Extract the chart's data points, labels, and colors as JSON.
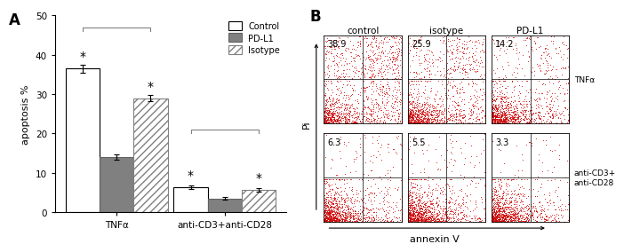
{
  "panel_A": {
    "ylabel": "apoptosis %",
    "ylim": [
      0,
      50
    ],
    "yticks": [
      0,
      10,
      20,
      30,
      40,
      50
    ],
    "groups": [
      "TNFα",
      "anti-CD3+anti-CD28"
    ],
    "bars": {
      "Control": [
        36.5,
        6.3
      ],
      "PD-L1": [
        14.0,
        3.5
      ],
      "Isotype": [
        29.0,
        5.7
      ]
    },
    "errors": {
      "Control": [
        1.0,
        0.5
      ],
      "PD-L1": [
        0.6,
        0.3
      ],
      "Isotype": [
        0.8,
        0.4
      ]
    },
    "colors": {
      "Control": "#ffffff",
      "PD-L1": "#808080",
      "Isotype": "#ffffff"
    },
    "hatch": {
      "Control": "",
      "PD-L1": "",
      "Isotype": "////"
    },
    "edgecolors": {
      "Control": "#000000",
      "PD-L1": "#606060",
      "Isotype": "#808080"
    },
    "legend_labels": [
      "Control",
      "PD-L1",
      "Isotype"
    ]
  },
  "panel_B": {
    "col_labels": [
      "control",
      "isotype",
      "PD-L1"
    ],
    "row_labels": [
      "TNFα",
      "anti-CD3+\nanti-CD28"
    ],
    "values": [
      [
        38.9,
        25.9,
        14.2
      ],
      [
        6.3,
        5.5,
        3.3
      ]
    ],
    "xlabel": "annexin V",
    "ylabel": "Pi",
    "dot_color": "#cc0000"
  }
}
